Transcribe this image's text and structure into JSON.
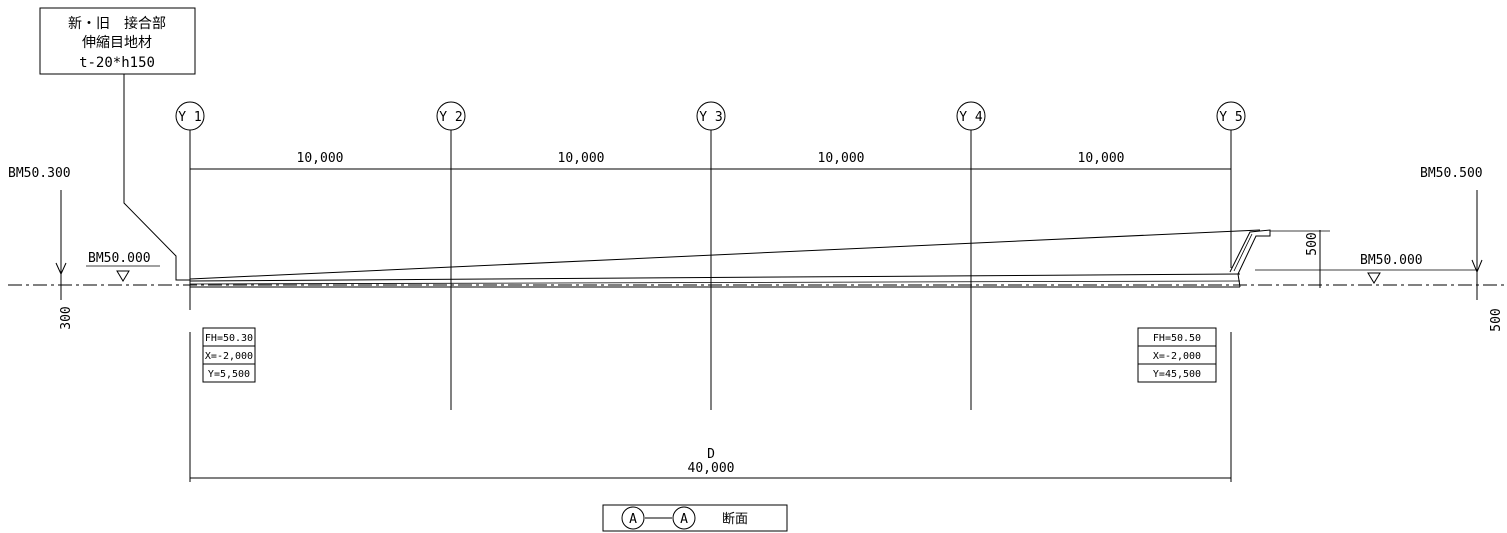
{
  "callout": {
    "line1": "新・旧　接合部",
    "line2": "伸縮目地材",
    "line3": "t-20*h150"
  },
  "grid_labels": [
    "Y 1",
    "Y 2",
    "Y 3",
    "Y 4",
    "Y 5"
  ],
  "spans": [
    "10,000",
    "10,000",
    "10,000",
    "10,000"
  ],
  "benchmarks": {
    "left_top": "BM50.300",
    "left_level": "BM50.000",
    "left_offset": "300",
    "right_top": "BM50.500",
    "right_level": "BM50.000",
    "right_offset": "500",
    "step_height": "500"
  },
  "left_info": {
    "fh": "FH=50.30",
    "x": "X=-2,000",
    "y": "Y=5,500"
  },
  "right_info": {
    "fh": "FH=50.50",
    "x": "X=-2,000",
    "y": "Y=45,500"
  },
  "overall": {
    "label": "D",
    "value": "40,000"
  },
  "section_title": {
    "mark1": "A",
    "mark2": "A",
    "suffix": "断面"
  }
}
